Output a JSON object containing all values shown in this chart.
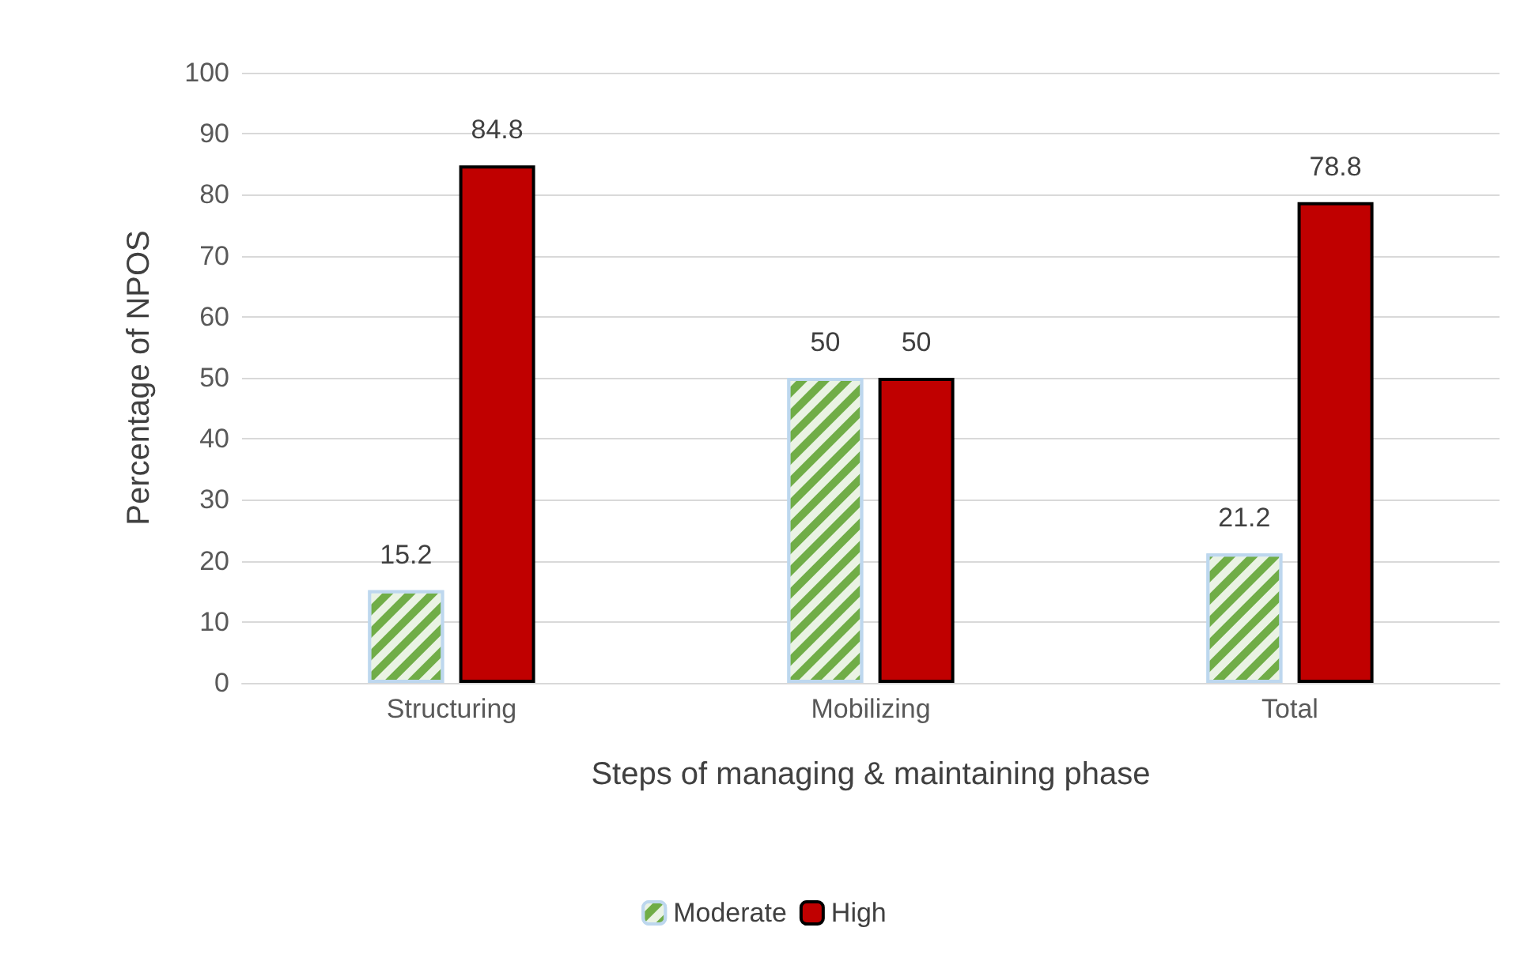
{
  "chart_data": {
    "type": "bar",
    "xlabel": "Steps of managing & maintaining phase",
    "ylabel": "Percentage of NPOS",
    "categories": [
      "Structuring",
      "Mobilizing",
      "Total"
    ],
    "series": [
      {
        "name": "Moderate",
        "color": "#70ad47",
        "values": [
          15.2,
          50,
          21.2
        ]
      },
      {
        "name": "High",
        "color": "#c00000",
        "values": [
          84.8,
          50,
          78.8
        ]
      }
    ],
    "ylim": [
      0,
      100
    ],
    "yticks": [
      0,
      10,
      20,
      30,
      40,
      50,
      60,
      70,
      80,
      90,
      100
    ],
    "grid": "y",
    "legend": "bottom",
    "data_labels": true
  }
}
